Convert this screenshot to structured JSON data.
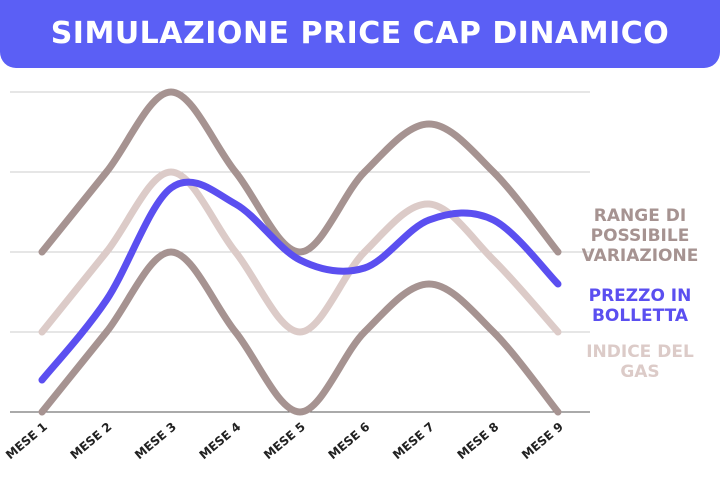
{
  "chart_data": {
    "type": "line",
    "title": "SIMULAZIONE PRICE CAP DINAMICO",
    "categories": [
      "MESE 1",
      "MESE 2",
      "MESE 3",
      "MESE 4",
      "MESE 5",
      "MESE 6",
      "MESE 7",
      "MESE 8",
      "MESE 9"
    ],
    "series": [
      {
        "name": "RANGE DI POSSIBILE VARIAZIONE",
        "color": "#a69391",
        "high": [
          2,
          3,
          4,
          3,
          2,
          3,
          3.6,
          3,
          2
        ],
        "low": [
          0,
          1,
          2,
          1,
          0,
          1,
          1.6,
          1,
          0
        ]
      },
      {
        "name": "PREZZO IN BOLLETTA",
        "color": "#5b4ff0",
        "values": [
          0.4,
          1.4,
          2.8,
          2.6,
          1.9,
          1.8,
          2.4,
          2.4,
          1.6
        ]
      },
      {
        "name": "INDICE DEL GAS",
        "color": "#dccbc8",
        "values": [
          1,
          2,
          3,
          2,
          1,
          2,
          2.6,
          1.9,
          1
        ]
      }
    ],
    "ylim": [
      0,
      4
    ],
    "yticks": [
      0,
      1,
      2,
      3,
      4
    ],
    "grid": true
  }
}
